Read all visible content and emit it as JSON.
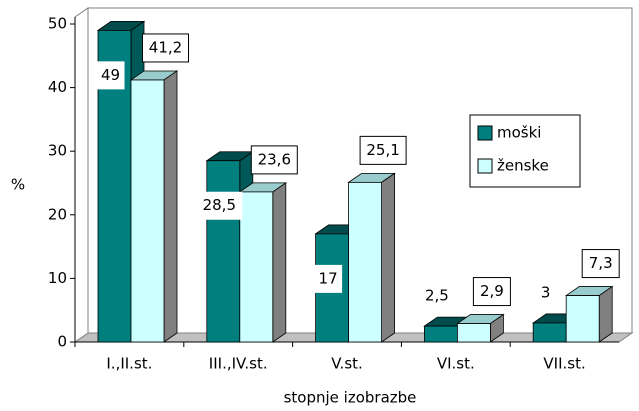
{
  "chart_data": {
    "type": "bar3d",
    "y_label": "%",
    "x_label": "stopnje izobrazbe",
    "categories": [
      "I.,II.st.",
      "III.,IV.st.",
      "V.st.",
      "VI.st.",
      "VII.st."
    ],
    "series": [
      {
        "name": "moški",
        "color": "#007f7f",
        "values": [
          49,
          28.5,
          17,
          2.5,
          3
        ],
        "value_labels": [
          "49",
          "28,5",
          "17",
          "2,5",
          "3"
        ]
      },
      {
        "name": "ženske",
        "color": "#ccffff",
        "values": [
          41.2,
          23.6,
          25.1,
          2.9,
          7.3
        ],
        "value_labels": [
          "41,2",
          "23,6",
          "25,1",
          "2,9",
          "7,3"
        ]
      }
    ],
    "ylim": [
      0,
      50
    ],
    "yticks": [
      0,
      10,
      20,
      30,
      40,
      50
    ],
    "legend": "right"
  }
}
